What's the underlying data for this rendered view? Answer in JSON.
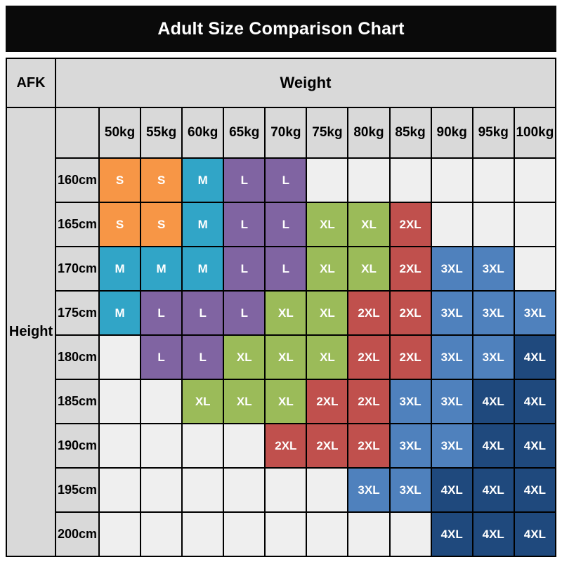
{
  "title": "Adult Size Comparison Chart",
  "corner_label": "AFK",
  "weight_label": "Weight",
  "height_label": "Height",
  "colors": {
    "banner_bg": "#0a0a0a",
    "header_bg": "#d9d9d9",
    "empty_bg": "#efefef",
    "S": "#f79646",
    "M": "#31a5c7",
    "L": "#8064a2",
    "XL": "#9bbb59",
    "2XL": "#c0504d",
    "3XL": "#4f81bd",
    "4XL": "#1f497d"
  },
  "chart_data": {
    "type": "table",
    "title": "Adult Size Comparison Chart",
    "xlabel": "Weight",
    "ylabel": "Height",
    "columns": [
      "50kg",
      "55kg",
      "60kg",
      "65kg",
      "70kg",
      "75kg",
      "80kg",
      "85kg",
      "90kg",
      "95kg",
      "100kg"
    ],
    "rows": [
      "160cm",
      "165cm",
      "170cm",
      "175cm",
      "180cm",
      "185cm",
      "190cm",
      "195cm",
      "200cm"
    ],
    "cells": [
      [
        "S",
        "S",
        "M",
        "L",
        "L",
        "",
        "",
        "",
        "",
        "",
        ""
      ],
      [
        "S",
        "S",
        "M",
        "L",
        "L",
        "XL",
        "XL",
        "2XL",
        "",
        "",
        ""
      ],
      [
        "M",
        "M",
        "M",
        "L",
        "L",
        "XL",
        "XL",
        "2XL",
        "3XL",
        "3XL",
        ""
      ],
      [
        "M",
        "L",
        "L",
        "L",
        "XL",
        "XL",
        "2XL",
        "2XL",
        "3XL",
        "3XL",
        "3XL"
      ],
      [
        "",
        "L",
        "L",
        "XL",
        "XL",
        "XL",
        "2XL",
        "2XL",
        "3XL",
        "3XL",
        "4XL"
      ],
      [
        "",
        "",
        "XL",
        "XL",
        "XL",
        "2XL",
        "2XL",
        "3XL",
        "3XL",
        "4XL",
        "4XL"
      ],
      [
        "",
        "",
        "",
        "",
        "2XL",
        "2XL",
        "2XL",
        "3XL",
        "3XL",
        "4XL",
        "4XL"
      ],
      [
        "",
        "",
        "",
        "",
        "",
        "",
        "3XL",
        "3XL",
        "4XL",
        "4XL",
        "4XL"
      ],
      [
        "",
        "",
        "",
        "",
        "",
        "",
        "",
        "",
        "4XL",
        "4XL",
        "4XL"
      ]
    ]
  }
}
